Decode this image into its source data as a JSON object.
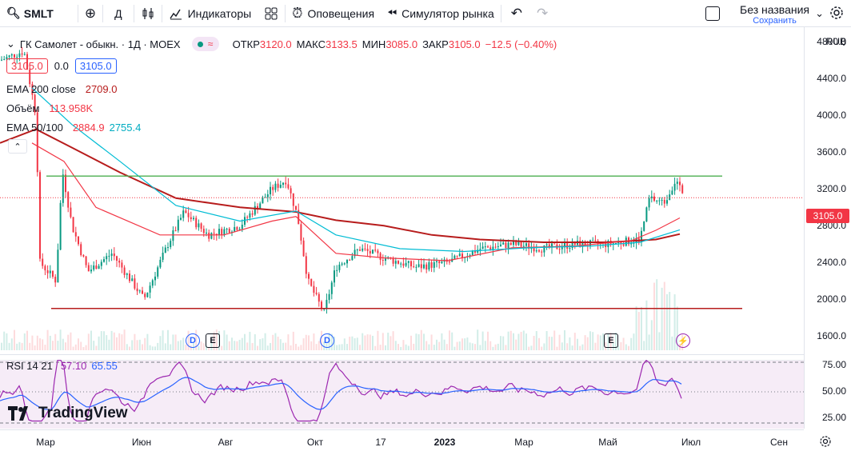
{
  "toolbar": {
    "symbol": "SMLT",
    "interval": "Д",
    "indicators": "Индикаторы",
    "alerts": "Оповещения",
    "replay": "Симулятор рынка",
    "layout_name": "Без названия",
    "save": "Сохранить"
  },
  "legend": {
    "instrument": "ГК Самолет - обыкн. · 1Д · MOEX",
    "open_label": "ОТКР",
    "open": "3120.0",
    "high_label": "МАКС",
    "high": "3133.5",
    "low_label": "МИН",
    "low": "3085.0",
    "close_label": "ЗАКР",
    "close": "3105.0",
    "change": "−12.5 (−0.40%)",
    "bid": "3105.0",
    "spread": "0.0",
    "ask": "3105.0",
    "ema200_label": "EMA 200 close",
    "ema200_value": "2709.0",
    "volume_label": "Объём",
    "volume_value": "113.958K",
    "ema50100_label": "EMA 50/100",
    "ema50_value": "2884.9",
    "ema100_value": "2755.4",
    "rsi_label": "RSI 14 21",
    "rsi1": "57.10",
    "rsi2": "65.55"
  },
  "price_scale": {
    "currency": "RUB",
    "ticks": [
      "4800.0",
      "4400.0",
      "4000.0",
      "3600.0",
      "3200.0",
      "2800.0",
      "2400.0",
      "2000.0",
      "1600.0"
    ],
    "current_price": "3105.0",
    "rsi_ticks": [
      "75.00",
      "50.00",
      "25.00"
    ]
  },
  "time_axis": {
    "labels": [
      "Мар",
      "Июн",
      "Авг",
      "Окт",
      "17",
      "2023",
      "Мар",
      "Май",
      "Июл",
      "Сен"
    ]
  },
  "badges": {
    "dividend": "D",
    "earnings": "E",
    "split": "⚡"
  },
  "branding": {
    "logo_text": "TradingView"
  },
  "colors": {
    "up": "#089981",
    "down": "#f23645",
    "ema200": "#b71c1c",
    "ema50": "#f23645",
    "ema100": "#00bcd4",
    "resistance": "#4caf50",
    "support": "#b71c1c",
    "rsi": "#9c27b0",
    "rsi_ma": "#2962ff"
  },
  "chart_data": {
    "type": "line",
    "title": "ГК Самолет - обыкн. · 1Д · MOEX",
    "ylim": [
      1500,
      5000
    ],
    "series": [
      {
        "name": "EMA 200 close",
        "points": [
          [
            0,
            3700
          ],
          [
            45,
            3850
          ],
          [
            90,
            3650
          ],
          [
            150,
            3380
          ],
          [
            220,
            3100
          ],
          [
            300,
            3000
          ],
          [
            370,
            2950
          ],
          [
            420,
            2860
          ],
          [
            480,
            2800
          ],
          [
            540,
            2700
          ],
          [
            600,
            2650
          ],
          [
            680,
            2620
          ],
          [
            760,
            2620
          ],
          [
            820,
            2650
          ],
          [
            850,
            2709
          ]
        ]
      },
      {
        "name": "EMA 50/100",
        "points": [
          [
            40,
            3700
          ],
          [
            80,
            3500
          ],
          [
            120,
            3000
          ],
          [
            200,
            2700
          ],
          [
            280,
            2700
          ],
          [
            340,
            2850
          ],
          [
            370,
            2900
          ],
          [
            420,
            2500
          ],
          [
            480,
            2450
          ],
          [
            560,
            2420
          ],
          [
            640,
            2560
          ],
          [
            720,
            2580
          ],
          [
            790,
            2640
          ],
          [
            820,
            2750
          ],
          [
            850,
            2884.9
          ]
        ]
      },
      {
        "name": "EMA 50/100",
        "points": [
          [
            40,
            4300
          ],
          [
            90,
            3900
          ],
          [
            150,
            3500
          ],
          [
            220,
            3020
          ],
          [
            300,
            2850
          ],
          [
            370,
            2960
          ],
          [
            420,
            2700
          ],
          [
            500,
            2550
          ],
          [
            580,
            2520
          ],
          [
            660,
            2560
          ],
          [
            740,
            2580
          ],
          [
            800,
            2620
          ],
          [
            850,
            2755.4
          ]
        ]
      }
    ],
    "levels": {
      "resistance": 3340,
      "support": 1900
    }
  }
}
